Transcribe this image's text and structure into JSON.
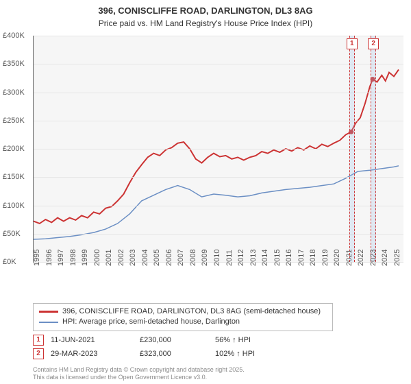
{
  "header": {
    "address": "396, CONISCLIFFE ROAD, DARLINGTON, DL3 8AG",
    "subtitle": "Price paid vs. HM Land Registry's House Price Index (HPI)"
  },
  "chart": {
    "type": "line",
    "background_color": "#f6f6f6",
    "grid_color": "#e5e5e5",
    "axis_color": "#666666",
    "label_color": "#555555",
    "label_fontsize": 11,
    "x": {
      "min": 1995,
      "max": 2025.8,
      "ticks": [
        1995,
        1996,
        1997,
        1998,
        1999,
        2000,
        2001,
        2002,
        2003,
        2004,
        2005,
        2006,
        2007,
        2008,
        2009,
        2010,
        2011,
        2012,
        2013,
        2014,
        2015,
        2016,
        2017,
        2018,
        2019,
        2020,
        2021,
        2022,
        2023,
        2024,
        2025
      ]
    },
    "y": {
      "min": 0,
      "max": 400,
      "tick_step": 50,
      "tick_prefix": "£",
      "tick_suffix": "K"
    },
    "series": [
      {
        "id": "price_paid",
        "label": "396, CONISCLIFFE ROAD, DARLINGTON, DL3 8AG (semi-detached house)",
        "color": "#cc3333",
        "stroke_width": 2,
        "points": [
          [
            1995.0,
            72
          ],
          [
            1995.5,
            68
          ],
          [
            1996.0,
            75
          ],
          [
            1996.5,
            70
          ],
          [
            1997.0,
            78
          ],
          [
            1997.5,
            72
          ],
          [
            1998.0,
            78
          ],
          [
            1998.5,
            74
          ],
          [
            1999.0,
            82
          ],
          [
            1999.5,
            78
          ],
          [
            2000.0,
            88
          ],
          [
            2000.5,
            85
          ],
          [
            2001.0,
            95
          ],
          [
            2001.5,
            98
          ],
          [
            2002.0,
            108
          ],
          [
            2002.5,
            120
          ],
          [
            2003.0,
            140
          ],
          [
            2003.5,
            158
          ],
          [
            2004.0,
            172
          ],
          [
            2004.5,
            185
          ],
          [
            2005.0,
            192
          ],
          [
            2005.5,
            188
          ],
          [
            2006.0,
            198
          ],
          [
            2006.5,
            202
          ],
          [
            2007.0,
            210
          ],
          [
            2007.5,
            212
          ],
          [
            2008.0,
            200
          ],
          [
            2008.5,
            182
          ],
          [
            2009.0,
            175
          ],
          [
            2009.5,
            185
          ],
          [
            2010.0,
            192
          ],
          [
            2010.5,
            186
          ],
          [
            2011.0,
            188
          ],
          [
            2011.5,
            182
          ],
          [
            2012.0,
            185
          ],
          [
            2012.5,
            180
          ],
          [
            2013.0,
            185
          ],
          [
            2013.5,
            188
          ],
          [
            2014.0,
            195
          ],
          [
            2014.5,
            192
          ],
          [
            2015.0,
            198
          ],
          [
            2015.5,
            194
          ],
          [
            2016.0,
            200
          ],
          [
            2016.5,
            196
          ],
          [
            2017.0,
            202
          ],
          [
            2017.5,
            198
          ],
          [
            2018.0,
            205
          ],
          [
            2018.5,
            200
          ],
          [
            2019.0,
            208
          ],
          [
            2019.5,
            204
          ],
          [
            2020.0,
            210
          ],
          [
            2020.5,
            215
          ],
          [
            2021.0,
            225
          ],
          [
            2021.45,
            230
          ],
          [
            2021.8,
            245
          ],
          [
            2022.2,
            255
          ],
          [
            2022.6,
            280
          ],
          [
            2023.0,
            310
          ],
          [
            2023.24,
            323
          ],
          [
            2023.6,
            318
          ],
          [
            2024.0,
            330
          ],
          [
            2024.3,
            320
          ],
          [
            2024.6,
            335
          ],
          [
            2025.0,
            328
          ],
          [
            2025.4,
            340
          ]
        ]
      },
      {
        "id": "hpi",
        "label": "HPI: Average price, semi-detached house, Darlington",
        "color": "#6b8fc4",
        "stroke_width": 1.5,
        "points": [
          [
            1995.0,
            40
          ],
          [
            1996.0,
            41
          ],
          [
            1997.0,
            43
          ],
          [
            1998.0,
            45
          ],
          [
            1999.0,
            48
          ],
          [
            2000.0,
            52
          ],
          [
            2001.0,
            58
          ],
          [
            2002.0,
            68
          ],
          [
            2003.0,
            85
          ],
          [
            2004.0,
            108
          ],
          [
            2005.0,
            118
          ],
          [
            2006.0,
            128
          ],
          [
            2007.0,
            135
          ],
          [
            2008.0,
            128
          ],
          [
            2009.0,
            115
          ],
          [
            2010.0,
            120
          ],
          [
            2011.0,
            118
          ],
          [
            2012.0,
            115
          ],
          [
            2013.0,
            117
          ],
          [
            2014.0,
            122
          ],
          [
            2015.0,
            125
          ],
          [
            2016.0,
            128
          ],
          [
            2017.0,
            130
          ],
          [
            2018.0,
            132
          ],
          [
            2019.0,
            135
          ],
          [
            2020.0,
            138
          ],
          [
            2021.0,
            148
          ],
          [
            2022.0,
            160
          ],
          [
            2023.0,
            162
          ],
          [
            2024.0,
            165
          ],
          [
            2025.0,
            168
          ],
          [
            2025.4,
            170
          ]
        ]
      }
    ],
    "markers": [
      {
        "id": "m1",
        "num": "1",
        "x": 2021.45,
        "y": 230,
        "band_width_years": 0.35
      },
      {
        "id": "m2",
        "num": "2",
        "x": 2023.24,
        "y": 323,
        "band_width_years": 0.35
      }
    ]
  },
  "legend": {
    "border_color": "#bbbbbb",
    "items": [
      {
        "series": "price_paid"
      },
      {
        "series": "hpi"
      }
    ]
  },
  "transactions": [
    {
      "num": "1",
      "date": "11-JUN-2021",
      "price": "£230,000",
      "pct": "56% ↑ HPI"
    },
    {
      "num": "2",
      "date": "29-MAR-2023",
      "price": "£323,000",
      "pct": "102% ↑ HPI"
    }
  ],
  "footer": {
    "line1": "Contains HM Land Registry data © Crown copyright and database right 2025.",
    "line2": "This data is licensed under the Open Government Licence v3.0."
  },
  "colors": {
    "marker_border": "#cc3333",
    "marker_text": "#cc3333",
    "band_fill": "rgba(160,190,230,0.25)"
  }
}
